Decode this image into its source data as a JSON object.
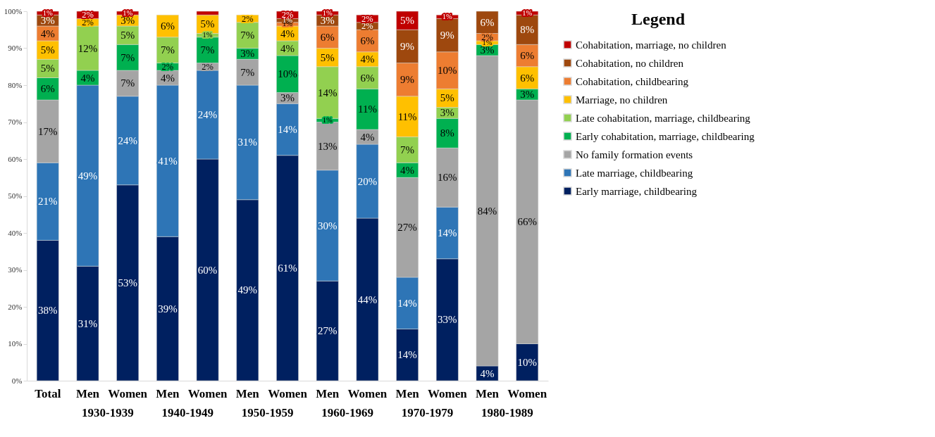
{
  "chart_data": {
    "type": "bar",
    "stacked": true,
    "legend": "right",
    "legend_title": "Legend",
    "grid": false,
    "categories": [
      "Total",
      "Men",
      "Women",
      "Men",
      "Women",
      "Men",
      "Women",
      "Men",
      "Women",
      "Men",
      "Women",
      "Men",
      "Women"
    ],
    "annotations": [
      "1930-1939",
      "1940-1949",
      "1950-1959",
      "1960-1969",
      "1970-1979",
      "1980-1989"
    ],
    "ylim": [
      0,
      100
    ],
    "yticks": [
      {
        "value": 0,
        "label": "0%"
      },
      {
        "value": 10,
        "label": "10%"
      },
      {
        "value": 20,
        "label": "20%"
      },
      {
        "value": 30,
        "label": "30%"
      },
      {
        "value": 40,
        "label": "40%"
      },
      {
        "value": 50,
        "label": "50%"
      },
      {
        "value": 60,
        "label": "60%"
      },
      {
        "value": 70,
        "label": "70%"
      },
      {
        "value": 80,
        "label": "80%"
      },
      {
        "value": 90,
        "label": "90%"
      },
      {
        "value": 100,
        "label": "100%"
      }
    ],
    "series": [
      {
        "name": "Early marriage, childbearing",
        "color": "#002060",
        "values": [
          38,
          31,
          53,
          39,
          60,
          49,
          61,
          27,
          44,
          14,
          33,
          4,
          10
        ],
        "value_labels": [
          "38%",
          "31%",
          "53%",
          "39%",
          "60%",
          "49%",
          "61%",
          "27%",
          "44%",
          "14%",
          "33%",
          "4%",
          "10%"
        ]
      },
      {
        "name": "Late marriage, childbearing",
        "color": "#2e75b6",
        "values": [
          21,
          49,
          24,
          41,
          24,
          31,
          14,
          30,
          20,
          14,
          14,
          null,
          null
        ],
        "value_labels": [
          "21%",
          "49%",
          "24%",
          "41%",
          "24%",
          "31%",
          "14%",
          "30%",
          "20%",
          "14%",
          "14%",
          null,
          null
        ]
      },
      {
        "name": "No family formation events",
        "color": "#a5a5a5",
        "values": [
          17,
          null,
          7,
          4,
          2,
          7,
          3,
          13,
          4,
          27,
          16,
          84,
          66
        ],
        "value_labels": [
          "17%",
          null,
          "7%",
          "4%",
          "2%",
          "7%",
          "3%",
          "13%",
          "4%",
          "27%",
          "16%",
          "84%",
          "66%"
        ]
      },
      {
        "name": "Early cohabitation, marriage, childbearing",
        "color": "#00b050",
        "values": [
          6,
          4,
          7,
          2,
          7,
          3,
          10,
          1,
          11,
          4,
          8,
          3,
          3
        ],
        "value_labels": [
          "6%",
          "4%",
          "7%",
          "2%",
          "7%",
          "3%",
          "10%",
          "1%",
          "11%",
          "4%",
          "8%",
          "3%",
          "3%"
        ]
      },
      {
        "name": "Late cohabitation, marriage, childbearing",
        "color": "#92d050",
        "values": [
          5,
          12,
          5,
          7,
          1,
          7,
          4,
          14,
          6,
          7,
          3,
          null,
          null
        ],
        "value_labels": [
          "5%",
          "12%",
          "5%",
          "7%",
          "1%",
          "7%",
          "4%",
          "14%",
          "6%",
          "7%",
          "3%",
          null,
          null
        ]
      },
      {
        "name": "Marriage, no children",
        "color": "#ffc000",
        "values": [
          5,
          2,
          3,
          6,
          5,
          2,
          4,
          5,
          4,
          11,
          5,
          1,
          6
        ],
        "value_labels": [
          "5%",
          "2%",
          "3%",
          "6%",
          "5%",
          "2%",
          "4%",
          "5%",
          "4%",
          "11%",
          "5%",
          "1%",
          "6%"
        ]
      },
      {
        "name": "Cohabitation, childbearing",
        "color": "#ed7d31",
        "values": [
          4,
          null,
          null,
          null,
          null,
          null,
          1,
          6,
          6,
          9,
          10,
          2,
          6
        ],
        "value_labels": [
          "4%",
          null,
          null,
          null,
          null,
          null,
          "1%",
          "6%",
          "6%",
          "9%",
          "10%",
          "2%",
          "6%"
        ]
      },
      {
        "name": "Cohabitation, no children",
        "color": "#9e480e",
        "values": [
          3,
          null,
          null,
          null,
          null,
          null,
          1,
          3,
          2,
          9,
          9,
          6,
          8
        ],
        "value_labels": [
          "3%",
          null,
          null,
          null,
          null,
          null,
          "1%",
          "3%",
          "2%",
          "9%",
          "9%",
          "6%",
          "8%"
        ]
      },
      {
        "name": "Cohabitation, marriage, no children",
        "color": "#c00000",
        "values": [
          1,
          2,
          1,
          null,
          1,
          null,
          2,
          1,
          2,
          5,
          1,
          null,
          1
        ],
        "value_labels": [
          "1%",
          "2%",
          "1%",
          null,
          null,
          null,
          "2%",
          "1%",
          "2%",
          "5%",
          "1%",
          null,
          "1%"
        ]
      }
    ]
  }
}
